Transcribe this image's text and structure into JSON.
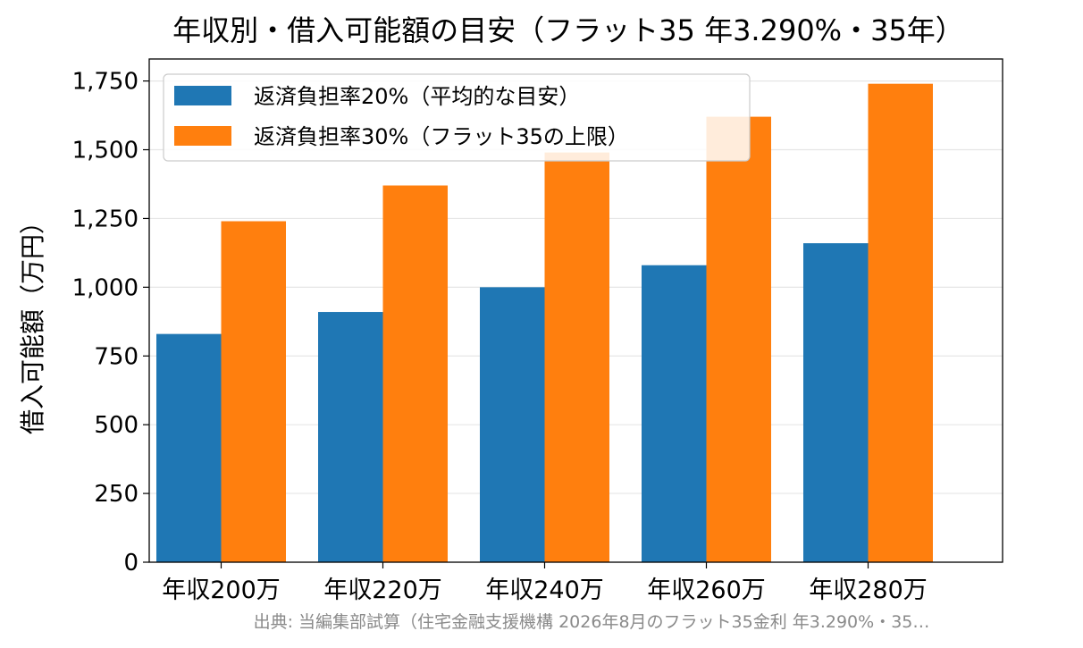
{
  "chart_data": {
    "type": "bar",
    "title": "年収別・借入可能額の目安（フラット35 年3.290%・35年）",
    "xlabel": "",
    "ylabel": "借入可能額（万円）",
    "categories": [
      "年収200万",
      "年収220万",
      "年収240万",
      "年収260万",
      "年収280万"
    ],
    "series": [
      {
        "name": "返済負担率20%（平均的な目安）",
        "color": "#1f77b4",
        "values": [
          830,
          910,
          1000,
          1080,
          1160
        ]
      },
      {
        "name": "返済負担率30%（フラット35の上限）",
        "color": "#ff7f0e",
        "values": [
          1240,
          1370,
          1490,
          1620,
          1740
        ]
      }
    ],
    "ylim": [
      0,
      1830
    ],
    "yticks": [
      0,
      250,
      500,
      750,
      1000,
      1250,
      1500,
      1750
    ],
    "ytick_labels": [
      "0",
      "250",
      "500",
      "750",
      "1,000",
      "1,250",
      "1,500",
      "1,750"
    ],
    "grid": "y",
    "legend_position": "top-left",
    "source_note": "出典: 当編集部試算（住宅金融支援機構 2026年8月のフラット35金利 年3.290%・35…"
  }
}
